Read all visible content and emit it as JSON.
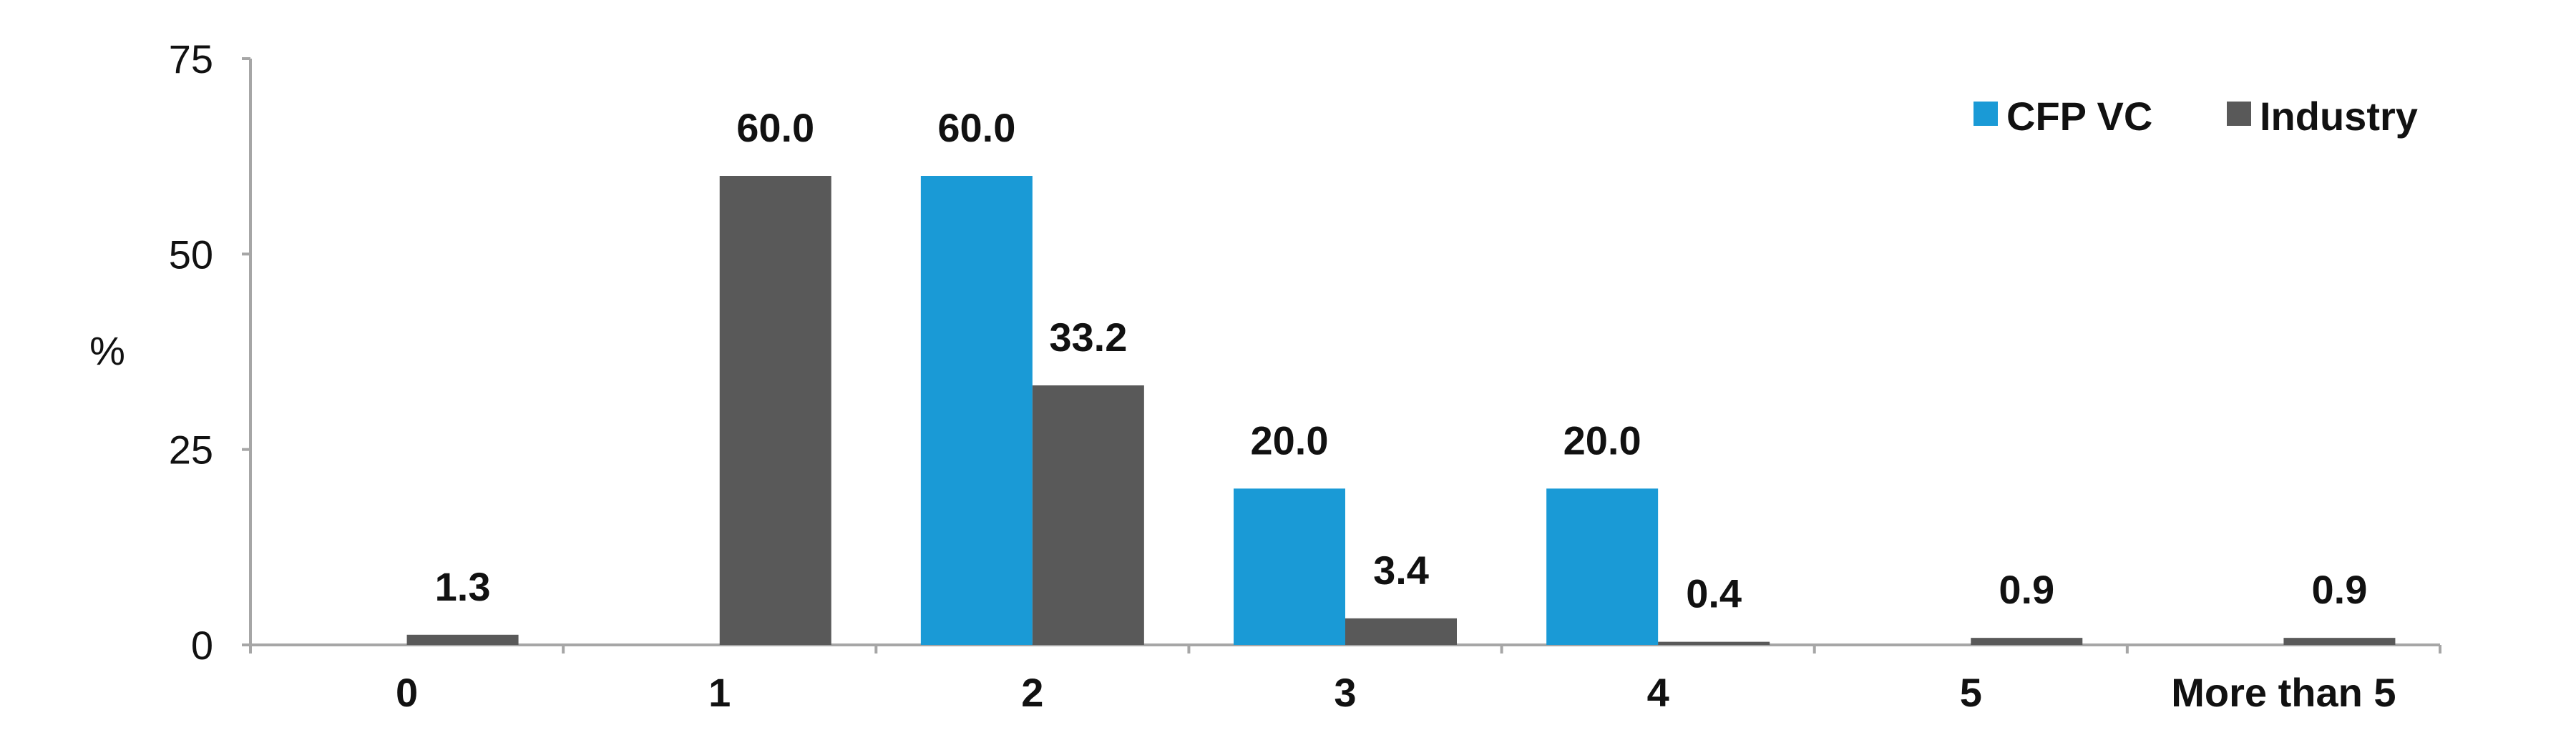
{
  "chart_data": {
    "type": "bar",
    "title": "",
    "xlabel": "",
    "ylabel": "%",
    "ylim": [
      0,
      75
    ],
    "yticks": [
      0,
      25,
      50,
      75
    ],
    "grid": false,
    "legend_position": "top-right",
    "categories": [
      "0",
      "1",
      "2",
      "3",
      "4",
      "5",
      "More than 5"
    ],
    "series": [
      {
        "name": "CFP VC",
        "color": "#1a9ad6",
        "values": [
          0,
          0,
          60.0,
          20.0,
          20.0,
          0,
          0
        ],
        "labels": [
          "",
          "",
          "60.0",
          "20.0",
          "20.0",
          "",
          ""
        ]
      },
      {
        "name": "Industry",
        "color": "#595959",
        "values": [
          1.3,
          60.0,
          33.2,
          3.4,
          0.4,
          0.9,
          0.9
        ],
        "labels": [
          "1.3",
          "60.0",
          "33.2",
          "3.4",
          "0.4",
          "0.9",
          "0.9"
        ]
      }
    ]
  }
}
